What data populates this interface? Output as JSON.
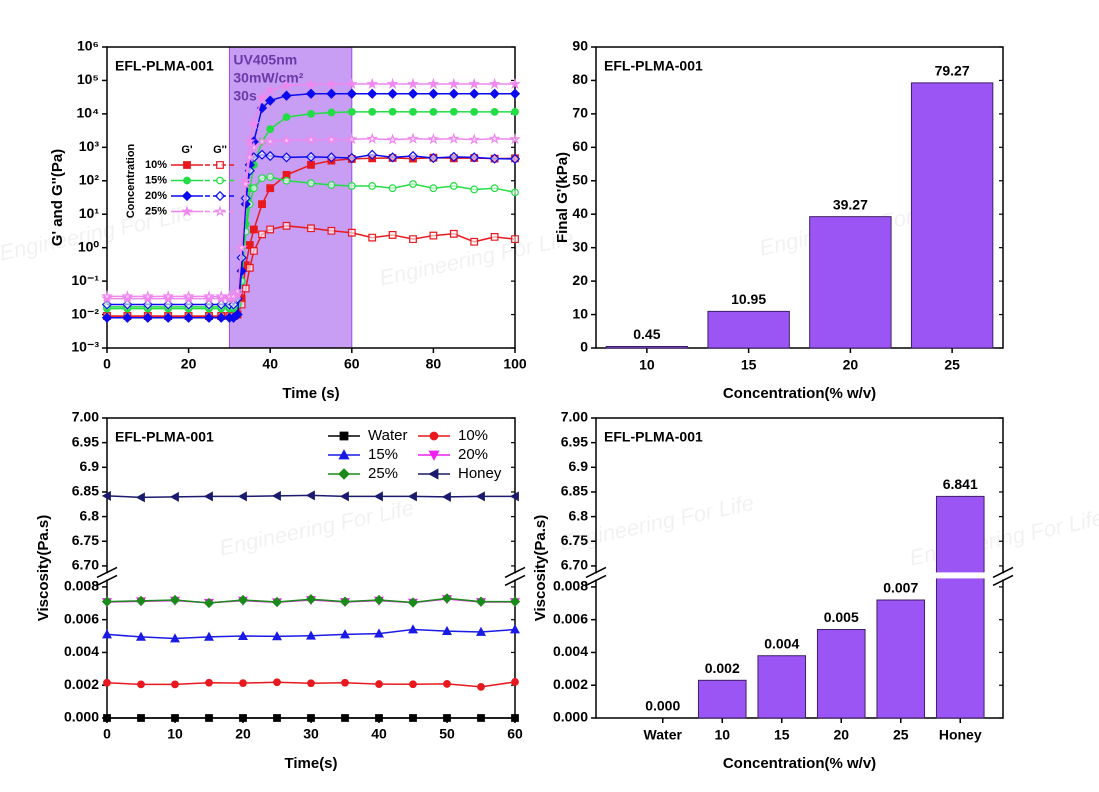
{
  "watermark": "Engineering For Life",
  "chart_data": [
    {
      "type": "line",
      "title": "EFL-PLMA-001",
      "x_label": "Time (s)",
      "y_label": "G' and G''(Pa)",
      "ylog": true,
      "xlim": [
        0,
        100
      ],
      "xticks": [
        0,
        20,
        40,
        60,
        80,
        100
      ],
      "ylim": [
        0.001,
        1000000
      ],
      "yticks": [
        {
          "value": 0.001,
          "label": "10⁻³"
        },
        {
          "value": 0.01,
          "label": "10⁻²"
        },
        {
          "value": 0.1,
          "label": "10⁻¹"
        },
        {
          "value": 1,
          "label": "10⁰"
        },
        {
          "value": 10,
          "label": "10¹"
        },
        {
          "value": 100,
          "label": "10²"
        },
        {
          "value": 1000,
          "label": "10³"
        },
        {
          "value": 10000,
          "label": "10⁴"
        },
        {
          "value": 100000,
          "label": "10⁵"
        },
        {
          "value": 1000000,
          "label": "10⁶"
        }
      ],
      "uv_window": [
        30,
        60
      ],
      "uv_color": "#b57cf0",
      "annotation": [
        "UV405nm",
        "30mW/cm²",
        "30s"
      ],
      "legend_title": "Concentration",
      "legend_columns": [
        "G'",
        "G''"
      ],
      "x": [
        0,
        5,
        10,
        15,
        20,
        25,
        28,
        30,
        31,
        32,
        33,
        34,
        35,
        36,
        38,
        40,
        44,
        50,
        55,
        60,
        65,
        70,
        75,
        80,
        85,
        90,
        95,
        100
      ],
      "series": [
        {
          "name": "10%",
          "color": "#e8191e",
          "marker": "square",
          "g_prime": [
            0.009,
            0.009,
            0.009,
            0.009,
            0.009,
            0.009,
            0.009,
            0.009,
            0.009,
            0.01,
            0.03,
            0.3,
            1.2,
            3.5,
            20,
            60,
            150,
            300,
            400,
            450,
            470,
            480,
            460,
            490,
            470,
            480,
            460,
            470
          ],
          "g_double_prime": [
            0.009,
            0.009,
            0.009,
            0.009,
            0.009,
            0.009,
            0.009,
            0.009,
            0.009,
            0.01,
            0.02,
            0.06,
            0.25,
            0.8,
            2.5,
            3.5,
            4.5,
            3.8,
            3.2,
            2.8,
            2.0,
            2.4,
            1.8,
            2.3,
            2.6,
            1.5,
            2.1,
            1.8
          ]
        },
        {
          "name": "15%",
          "color": "#22dd44",
          "marker": "circle",
          "g_prime": [
            0.015,
            0.015,
            0.015,
            0.015,
            0.015,
            0.015,
            0.015,
            0.015,
            0.015,
            0.02,
            0.1,
            5,
            60,
            300,
            1500,
            3500,
            8000,
            10000,
            11000,
            11500,
            11500,
            11600,
            11500,
            11500,
            11600,
            11500,
            11500,
            11500
          ],
          "g_double_prime": [
            0.017,
            0.017,
            0.017,
            0.017,
            0.017,
            0.017,
            0.017,
            0.017,
            0.017,
            0.02,
            0.1,
            3,
            20,
            60,
            120,
            130,
            100,
            85,
            75,
            70,
            70,
            60,
            80,
            60,
            70,
            55,
            60,
            45
          ]
        },
        {
          "name": "20%",
          "color": "#0a0af0",
          "marker": "diamond",
          "g_prime": [
            0.008,
            0.008,
            0.008,
            0.008,
            0.008,
            0.008,
            0.008,
            0.008,
            0.008,
            0.01,
            0.2,
            20,
            300,
            1500,
            15000,
            25000,
            35000,
            40000,
            40000,
            40000,
            40000,
            40000,
            40000,
            40000,
            40000,
            40000,
            40000,
            40000
          ],
          "g_double_prime": [
            0.02,
            0.02,
            0.02,
            0.02,
            0.02,
            0.02,
            0.02,
            0.02,
            0.02,
            0.03,
            0.5,
            30,
            200,
            500,
            600,
            550,
            500,
            520,
            500,
            480,
            600,
            500,
            550,
            480,
            520,
            500,
            460,
            450
          ]
        },
        {
          "name": "25%",
          "color": "#ee88ee",
          "marker": "star",
          "g_prime": [
            0.03,
            0.03,
            0.03,
            0.03,
            0.03,
            0.03,
            0.03,
            0.03,
            0.03,
            0.04,
            1,
            100,
            1500,
            5000,
            30000,
            50000,
            70000,
            75000,
            77000,
            78000,
            78000,
            78000,
            78000,
            78000,
            78000,
            78000,
            78000,
            78000
          ],
          "g_double_prime": [
            0.035,
            0.035,
            0.035,
            0.035,
            0.035,
            0.035,
            0.035,
            0.035,
            0.035,
            0.05,
            1,
            80,
            500,
            1000,
            1500,
            1500,
            1600,
            1700,
            1700,
            1750,
            1800,
            1700,
            1800,
            1750,
            1800,
            1700,
            1800,
            1750
          ]
        }
      ]
    },
    {
      "type": "bar",
      "title": "EFL-PLMA-001",
      "x_label": "Concentration(% w/v)",
      "y_label": "Final G'(kPa)",
      "categories": [
        "10",
        "15",
        "20",
        "25"
      ],
      "values": [
        0.45,
        10.95,
        39.27,
        79.27
      ],
      "color": "#9c55f5",
      "ylim": [
        0,
        90
      ],
      "yticks": [
        0,
        10,
        20,
        30,
        40,
        50,
        60,
        70,
        80,
        90
      ]
    },
    {
      "type": "line",
      "title": "EFL-PLMA-001",
      "x_label": "Time(s)",
      "y_label": "Viscosity(Pa.s)",
      "xlim": [
        0,
        60
      ],
      "xticks": [
        0,
        10,
        20,
        30,
        40,
        50,
        60
      ],
      "ylim": [
        0,
        7.0
      ],
      "ybreak": [
        0.008,
        6.7
      ],
      "yticks": [
        {
          "value": 0,
          "label": "0.000"
        },
        0.002,
        0.004,
        0.006,
        0.008,
        {
          "value": 6.7,
          "label": "6.70"
        },
        6.75,
        6.8,
        6.85,
        6.9,
        6.95,
        {
          "value": 7.0,
          "label": "7.00"
        }
      ],
      "x": [
        0,
        5,
        10,
        15,
        20,
        25,
        30,
        35,
        40,
        45,
        50,
        55,
        60
      ],
      "series": [
        {
          "name": "Water",
          "color": "#000000",
          "marker": "square",
          "values": [
            0,
            0,
            0,
            0,
            0,
            0,
            0,
            0,
            0,
            0,
            0,
            0,
            0
          ]
        },
        {
          "name": "10%",
          "color": "#e8191e",
          "marker": "circle",
          "values": [
            0.00215,
            0.00205,
            0.00205,
            0.00215,
            0.00213,
            0.00218,
            0.00212,
            0.00215,
            0.00207,
            0.00206,
            0.00208,
            0.0019,
            0.0022
          ]
        },
        {
          "name": "15%",
          "color": "#1a1ae6",
          "marker": "triangle-up",
          "values": [
            0.0051,
            0.00495,
            0.00485,
            0.00495,
            0.005,
            0.00498,
            0.00502,
            0.0051,
            0.00515,
            0.0054,
            0.0053,
            0.00525,
            0.0054
          ]
        },
        {
          "name": "20%",
          "color": "#ee22ee",
          "marker": "triangle-down",
          "values": [
            0.00708,
            0.00712,
            0.00716,
            0.00703,
            0.00716,
            0.00706,
            0.0072,
            0.00708,
            0.00716,
            0.00704,
            0.00726,
            0.00708,
            0.00708
          ]
        },
        {
          "name": "25%",
          "color": "#1a8a1a",
          "marker": "diamond",
          "values": [
            0.0071,
            0.00715,
            0.0072,
            0.00702,
            0.0072,
            0.00708,
            0.00725,
            0.0071,
            0.0072,
            0.00705,
            0.0073,
            0.0071,
            0.0071
          ]
        },
        {
          "name": "Honey",
          "color": "#1a1a6e",
          "marker": "triangle-left",
          "values": [
            6.842,
            6.839,
            6.84,
            6.841,
            6.841,
            6.842,
            6.843,
            6.841,
            6.841,
            6.841,
            6.84,
            6.841,
            6.841
          ]
        }
      ]
    },
    {
      "type": "bar",
      "title": "EFL-PLMA-001",
      "x_label": "Concentration(% w/v)",
      "y_label": "Viscosity(Pa.s)",
      "categories": [
        "Water",
        "10",
        "15",
        "20",
        "25",
        "Honey"
      ],
      "values": [
        0,
        0.0023,
        0.0038,
        0.0054,
        0.0072,
        6.841
      ],
      "value_labels": [
        "0.000",
        "0.002",
        "0.004",
        "0.005",
        "0.007",
        "6.841"
      ],
      "color": "#9c55f5",
      "ylim": [
        0,
        7.0
      ],
      "ybreak": [
        0.008,
        6.7
      ],
      "yticks": [
        {
          "value": 0,
          "label": "0.000"
        },
        0.002,
        0.004,
        0.006,
        0.008,
        {
          "value": 6.7,
          "label": "6.70"
        },
        6.75,
        6.8,
        6.85,
        6.9,
        6.95,
        {
          "value": 7.0,
          "label": "7.00"
        }
      ]
    }
  ]
}
